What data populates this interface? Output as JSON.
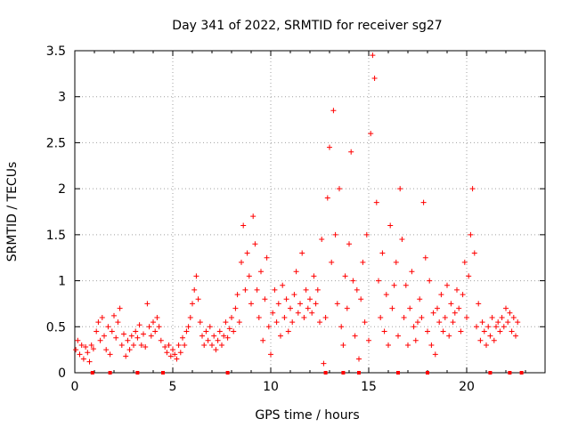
{
  "chart_data": {
    "type": "scatter",
    "title": "Day 341 of 2022, SRMTID for receiver sg27",
    "xlabel": "GPS time / hours",
    "ylabel": "SRMTID / TECUs",
    "xlim": [
      0,
      24
    ],
    "ylim": [
      0,
      3.5
    ],
    "xticks": [
      0,
      5,
      10,
      15,
      20
    ],
    "xtick_labels": [
      "0",
      "5",
      "10",
      "15",
      "20"
    ],
    "yticks": [
      0,
      0.5,
      1,
      1.5,
      2,
      2.5,
      3,
      3.5
    ],
    "ytick_labels": [
      "0",
      "0.5",
      "1",
      "1.5",
      "2",
      "2.5",
      "3",
      "3.5"
    ],
    "grid": true,
    "marker": "+",
    "color": "#ff0000",
    "series": [
      {
        "name": "SRMTID",
        "points": [
          [
            0.05,
            0.25
          ],
          [
            0.15,
            0.35
          ],
          [
            0.25,
            0.2
          ],
          [
            0.35,
            0.3
          ],
          [
            0.45,
            0.15
          ],
          [
            0.55,
            0.28
          ],
          [
            0.65,
            0.22
          ],
          [
            0.75,
            0.12
          ],
          [
            0.85,
            0.3
          ],
          [
            0.95,
            0.26
          ],
          [
            1.1,
            0.45
          ],
          [
            1.2,
            0.55
          ],
          [
            1.3,
            0.35
          ],
          [
            1.4,
            0.6
          ],
          [
            1.5,
            0.4
          ],
          [
            1.6,
            0.25
          ],
          [
            1.7,
            0.5
          ],
          [
            1.8,
            0.2
          ],
          [
            1.9,
            0.45
          ],
          [
            2.0,
            0.62
          ],
          [
            2.1,
            0.38
          ],
          [
            2.2,
            0.55
          ],
          [
            2.3,
            0.7
          ],
          [
            2.4,
            0.3
          ],
          [
            2.5,
            0.42
          ],
          [
            2.6,
            0.18
          ],
          [
            2.7,
            0.35
          ],
          [
            2.8,
            0.25
          ],
          [
            2.9,
            0.4
          ],
          [
            3.0,
            0.3
          ],
          [
            3.1,
            0.45
          ],
          [
            3.2,
            0.38
          ],
          [
            3.3,
            0.52
          ],
          [
            3.4,
            0.3
          ],
          [
            3.5,
            0.42
          ],
          [
            3.6,
            0.28
          ],
          [
            3.7,
            0.75
          ],
          [
            3.8,
            0.5
          ],
          [
            3.9,
            0.4
          ],
          [
            4.0,
            0.55
          ],
          [
            4.1,
            0.45
          ],
          [
            4.2,
            0.6
          ],
          [
            4.3,
            0.5
          ],
          [
            4.4,
            0.35
          ],
          [
            4.6,
            0.28
          ],
          [
            4.7,
            0.22
          ],
          [
            4.8,
            0.3
          ],
          [
            4.9,
            0.18
          ],
          [
            5.0,
            0.25
          ],
          [
            5.1,
            0.2
          ],
          [
            5.2,
            0.15
          ],
          [
            5.3,
            0.3
          ],
          [
            5.4,
            0.22
          ],
          [
            5.5,
            0.38
          ],
          [
            5.6,
            0.3
          ],
          [
            5.7,
            0.45
          ],
          [
            5.8,
            0.5
          ],
          [
            5.9,
            0.6
          ],
          [
            6.0,
            0.75
          ],
          [
            6.1,
            0.9
          ],
          [
            6.2,
            1.05
          ],
          [
            6.3,
            0.8
          ],
          [
            6.4,
            0.55
          ],
          [
            6.5,
            0.4
          ],
          [
            6.6,
            0.3
          ],
          [
            6.7,
            0.45
          ],
          [
            6.8,
            0.35
          ],
          [
            6.9,
            0.5
          ],
          [
            7.0,
            0.3
          ],
          [
            7.1,
            0.4
          ],
          [
            7.2,
            0.25
          ],
          [
            7.3,
            0.35
          ],
          [
            7.4,
            0.45
          ],
          [
            7.5,
            0.3
          ],
          [
            7.6,
            0.4
          ],
          [
            7.7,
            0.55
          ],
          [
            7.8,
            0.38
          ],
          [
            7.9,
            0.48
          ],
          [
            8.0,
            0.6
          ],
          [
            8.1,
            0.45
          ],
          [
            8.2,
            0.7
          ],
          [
            8.3,
            0.85
          ],
          [
            8.4,
            0.55
          ],
          [
            8.5,
            1.2
          ],
          [
            8.6,
            1.6
          ],
          [
            8.7,
            0.9
          ],
          [
            8.8,
            1.3
          ],
          [
            8.9,
            1.05
          ],
          [
            9.0,
            0.75
          ],
          [
            9.1,
            1.7
          ],
          [
            9.2,
            1.4
          ],
          [
            9.3,
            0.9
          ],
          [
            9.4,
            0.6
          ],
          [
            9.5,
            1.1
          ],
          [
            9.6,
            0.35
          ],
          [
            9.7,
            0.8
          ],
          [
            9.8,
            1.25
          ],
          [
            9.9,
            0.5
          ],
          [
            10.0,
            0.2
          ],
          [
            10.1,
            0.65
          ],
          [
            10.2,
            0.9
          ],
          [
            10.3,
            0.55
          ],
          [
            10.4,
            0.75
          ],
          [
            10.5,
            0.4
          ],
          [
            10.6,
            0.95
          ],
          [
            10.7,
            0.6
          ],
          [
            10.8,
            0.8
          ],
          [
            10.9,
            0.45
          ],
          [
            11.0,
            0.7
          ],
          [
            11.1,
            0.55
          ],
          [
            11.2,
            0.85
          ],
          [
            11.3,
            1.1
          ],
          [
            11.4,
            0.65
          ],
          [
            11.5,
            0.75
          ],
          [
            11.6,
            1.3
          ],
          [
            11.7,
            0.6
          ],
          [
            11.8,
            0.9
          ],
          [
            11.9,
            0.7
          ],
          [
            12.0,
            0.8
          ],
          [
            12.1,
            0.65
          ],
          [
            12.2,
            1.05
          ],
          [
            12.3,
            0.75
          ],
          [
            12.4,
            0.9
          ],
          [
            12.5,
            0.55
          ],
          [
            12.6,
            1.45
          ],
          [
            12.7,
            0.1
          ],
          [
            12.8,
            0.6
          ],
          [
            12.9,
            1.9
          ],
          [
            13.0,
            2.45
          ],
          [
            13.1,
            1.2
          ],
          [
            13.2,
            2.85
          ],
          [
            13.3,
            1.5
          ],
          [
            13.4,
            0.75
          ],
          [
            13.5,
            2.0
          ],
          [
            13.6,
            0.5
          ],
          [
            13.7,
            0.3
          ],
          [
            13.8,
            1.05
          ],
          [
            13.9,
            0.7
          ],
          [
            14.0,
            1.4
          ],
          [
            14.1,
            2.4
          ],
          [
            14.2,
            1.0
          ],
          [
            14.3,
            0.4
          ],
          [
            14.4,
            0.9
          ],
          [
            14.5,
            0.15
          ],
          [
            14.6,
            0.8
          ],
          [
            14.7,
            1.2
          ],
          [
            14.8,
            0.55
          ],
          [
            14.9,
            1.5
          ],
          [
            15.0,
            0.35
          ],
          [
            15.1,
            2.6
          ],
          [
            15.2,
            3.45
          ],
          [
            15.3,
            3.2
          ],
          [
            15.4,
            1.85
          ],
          [
            15.5,
            1.0
          ],
          [
            15.6,
            0.6
          ],
          [
            15.7,
            1.3
          ],
          [
            15.8,
            0.45
          ],
          [
            15.9,
            0.85
          ],
          [
            16.0,
            0.3
          ],
          [
            16.1,
            1.6
          ],
          [
            16.2,
            0.7
          ],
          [
            16.3,
            0.95
          ],
          [
            16.4,
            1.2
          ],
          [
            16.5,
            0.4
          ],
          [
            16.6,
            2.0
          ],
          [
            16.7,
            1.45
          ],
          [
            16.8,
            0.6
          ],
          [
            16.9,
            0.95
          ],
          [
            17.0,
            0.3
          ],
          [
            17.1,
            0.7
          ],
          [
            17.2,
            1.1
          ],
          [
            17.3,
            0.5
          ],
          [
            17.4,
            0.35
          ],
          [
            17.5,
            0.55
          ],
          [
            17.6,
            0.8
          ],
          [
            17.7,
            0.6
          ],
          [
            17.8,
            1.85
          ],
          [
            17.9,
            1.25
          ],
          [
            18.0,
            0.45
          ],
          [
            18.1,
            1.0
          ],
          [
            18.2,
            0.3
          ],
          [
            18.3,
            0.65
          ],
          [
            18.4,
            0.2
          ],
          [
            18.5,
            0.7
          ],
          [
            18.6,
            0.55
          ],
          [
            18.7,
            0.85
          ],
          [
            18.8,
            0.45
          ],
          [
            18.9,
            0.6
          ],
          [
            19.0,
            0.95
          ],
          [
            19.1,
            0.4
          ],
          [
            19.2,
            0.75
          ],
          [
            19.3,
            0.55
          ],
          [
            19.4,
            0.65
          ],
          [
            19.5,
            0.9
          ],
          [
            19.6,
            0.7
          ],
          [
            19.7,
            0.45
          ],
          [
            19.8,
            0.85
          ],
          [
            19.9,
            1.2
          ],
          [
            20.0,
            0.6
          ],
          [
            20.1,
            1.05
          ],
          [
            20.2,
            1.5
          ],
          [
            20.3,
            2.0
          ],
          [
            20.4,
            1.3
          ],
          [
            20.5,
            0.5
          ],
          [
            20.6,
            0.75
          ],
          [
            20.7,
            0.35
          ],
          [
            20.8,
            0.55
          ],
          [
            20.9,
            0.45
          ],
          [
            21.0,
            0.3
          ],
          [
            21.1,
            0.5
          ],
          [
            21.2,
            0.4
          ],
          [
            21.3,
            0.6
          ],
          [
            21.4,
            0.35
          ],
          [
            21.5,
            0.5
          ],
          [
            21.6,
            0.55
          ],
          [
            21.7,
            0.45
          ],
          [
            21.8,
            0.6
          ],
          [
            21.9,
            0.5
          ],
          [
            22.0,
            0.7
          ],
          [
            22.1,
            0.55
          ],
          [
            22.2,
            0.65
          ],
          [
            22.3,
            0.45
          ],
          [
            22.4,
            0.6
          ],
          [
            22.5,
            0.4
          ],
          [
            22.6,
            0.55
          ]
        ]
      }
    ],
    "zero_markers_x": [
      0.9,
      1.8,
      3.2,
      4.5,
      7.8,
      12.8,
      13.7,
      14.5,
      16.5,
      18.0,
      21.2,
      22.2,
      22.8
    ]
  }
}
